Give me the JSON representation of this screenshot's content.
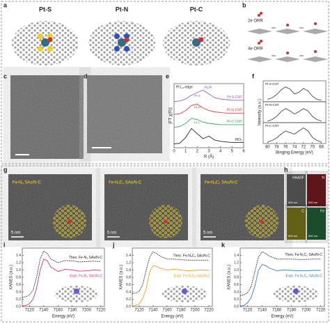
{
  "panel_labels": [
    "a",
    "b",
    "c",
    "d",
    "e",
    "f",
    "g",
    "h",
    "i",
    "j",
    "k"
  ],
  "a": {
    "titles": [
      "Pt-S",
      "Pt-N",
      "Pt-C"
    ]
  },
  "b": {
    "labels": [
      "2e ORR",
      "4e ORR"
    ]
  },
  "e": {
    "title": "Pt L₃-edge",
    "peak_label": "Pt-Pt",
    "xlabel": "R (Å)",
    "ylabel": "|FT χ(R)|",
    "xlim": [
      0,
      6
    ],
    "xticks": [
      0,
      1,
      2,
      3,
      4,
      5,
      6
    ],
    "ylim": [
      0,
      5
    ],
    "x": [
      0,
      0.5,
      1,
      1.5,
      2,
      2.5,
      3,
      3.5,
      4,
      4.5,
      5,
      5.5,
      6
    ],
    "series": [
      {
        "name": "Pt-S-CNT",
        "color": "#9b59b6",
        "values": [
          3.6,
          3.65,
          3.8,
          4.1,
          4.3,
          4.5,
          4.2,
          3.9,
          3.8,
          3.75,
          3.7,
          3.7,
          3.7
        ]
      },
      {
        "name": "Pt-N-CNT",
        "color": "#e04040",
        "values": [
          2.6,
          2.65,
          2.9,
          3.3,
          3.4,
          3.1,
          2.9,
          2.8,
          2.75,
          2.7,
          2.7,
          2.7,
          2.7
        ]
      },
      {
        "name": "Pt-C-CNT",
        "color": "#3aa655",
        "values": [
          1.6,
          1.65,
          1.9,
          2.3,
          2.2,
          2.0,
          1.9,
          1.85,
          1.8,
          1.8,
          1.8,
          1.8,
          1.8
        ]
      },
      {
        "name": "PtO₂",
        "color": "#222222",
        "values": [
          0.3,
          0.35,
          0.8,
          1.5,
          1.1,
          0.7,
          0.9,
          0.6,
          0.5,
          0.45,
          0.4,
          0.4,
          0.4
        ]
      }
    ],
    "peak_labels": [
      "Pt-S",
      "Pt-N",
      "Pt-C"
    ]
  },
  "f": {
    "xlabel": "Binging Energy (eV)",
    "ylabel": "Intensity (a.u.)",
    "xlim": [
      81,
      67
    ],
    "xticks": [
      80,
      78,
      76,
      74,
      72,
      70,
      68
    ],
    "ylim": [
      0,
      1.2
    ],
    "color": "#444444",
    "x": [
      80,
      79,
      78,
      77,
      76,
      75,
      74,
      73,
      72,
      71,
      70,
      69,
      68
    ],
    "panels": [
      {
        "name": "Pt-S-CNT",
        "values": [
          0.15,
          0.25,
          0.45,
          0.75,
          0.95,
          0.8,
          0.5,
          0.6,
          0.85,
          0.7,
          0.35,
          0.15,
          0.1
        ]
      },
      {
        "name": "Pt-N-CNT",
        "values": [
          0.1,
          0.2,
          0.4,
          0.7,
          0.9,
          0.75,
          0.55,
          0.7,
          0.9,
          0.75,
          0.4,
          0.2,
          0.1
        ]
      },
      {
        "name": "Pt-C-CNT",
        "values": [
          0.1,
          0.2,
          0.35,
          0.6,
          0.8,
          0.7,
          0.6,
          0.8,
          1.0,
          0.8,
          0.4,
          0.2,
          0.1
        ]
      }
    ]
  },
  "g": {
    "labels": [
      "Fe-N₄ SAs/N-C",
      "Fe-N₃C₁ SAs/N-C",
      "Fe-N₂C₂ SAs/N-C"
    ],
    "scale": "5 nm"
  },
  "h": {
    "maps": [
      {
        "label": "HAADF",
        "color": "#9a9a9a"
      },
      {
        "label": "N",
        "color": "#c0202a"
      },
      {
        "label": "C",
        "color": "#c8c020"
      },
      {
        "label": "Fe",
        "color": "#2a9a50"
      }
    ],
    "scale": "500 nm"
  },
  "xanes": [
    {
      "xlabel": "Energy (eV)",
      "ylabel": "XANES (a.u.)",
      "xlim": [
        7110,
        7225
      ],
      "xticks": [
        7120,
        7140,
        7160,
        7180,
        7200,
        7220
      ],
      "ylim": [
        0,
        1.6
      ],
      "yticks": [
        {
          "value": 0,
          "label": "0.0"
        },
        0.2,
        0.4,
        0.6,
        0.8,
        {
          "value": 1,
          "label": "1.0"
        },
        1.2,
        1.4
      ],
      "x": [
        7110,
        7115,
        7120,
        7125,
        7130,
        7135,
        7140,
        7145,
        7150,
        7160,
        7170,
        7180,
        7190,
        7200,
        7210,
        7220
      ],
      "series": [
        {
          "name": "Theo. Fe-N₄ SAs/N-C",
          "color": "#111111",
          "style": "dotted",
          "values": [
            0.25,
            0.27,
            0.32,
            0.45,
            0.8,
            1.3,
            1.52,
            1.45,
            1.3,
            1.2,
            1.26,
            1.25,
            1.22,
            1.23,
            1.24,
            1.23
          ]
        },
        {
          "name": "Expt. Fe-N₄ SAs/N-C",
          "color": "#d63a6a",
          "style": "solid",
          "values": [
            0.02,
            0.03,
            0.08,
            0.2,
            0.5,
            1.0,
            1.3,
            1.25,
            1.08,
            0.96,
            1.02,
            1.0,
            0.97,
            0.98,
            1.0,
            0.99
          ]
        }
      ]
    },
    {
      "xlabel": "Energy (eV)",
      "ylabel": "XANES (a.u.)",
      "xlim": [
        7110,
        7225
      ],
      "xticks": [
        7120,
        7140,
        7160,
        7180,
        7200,
        7220
      ],
      "ylim": [
        0,
        1.6
      ],
      "yticks": [
        {
          "value": 0,
          "label": "0.0"
        },
        0.2,
        0.4,
        0.6,
        0.8,
        {
          "value": 1,
          "label": "1.0"
        },
        1.2,
        1.4
      ],
      "x": [
        7110,
        7115,
        7120,
        7125,
        7130,
        7135,
        7140,
        7145,
        7150,
        7160,
        7170,
        7180,
        7190,
        7200,
        7210,
        7220
      ],
      "series": [
        {
          "name": "Theo. Fe-N₃C₁ SAs/N-C",
          "color": "#111111",
          "style": "dotted",
          "values": [
            0.35,
            0.37,
            0.42,
            0.6,
            1.0,
            1.35,
            1.5,
            1.45,
            1.38,
            1.3,
            1.3,
            1.28,
            1.27,
            1.27,
            1.27,
            1.27
          ]
        },
        {
          "name": "Expt. Fe-N₃C₁ SAs/N-C",
          "color": "#f0a020",
          "style": "solid",
          "values": [
            0.02,
            0.03,
            0.08,
            0.22,
            0.5,
            0.95,
            1.12,
            1.1,
            1.05,
            1.0,
            1.02,
            1.0,
            0.98,
            0.99,
            1.0,
            0.99
          ]
        }
      ]
    },
    {
      "xlabel": "Energy (eV)",
      "ylabel": "XANES (a.u.)",
      "xlim": [
        7110,
        7225
      ],
      "xticks": [
        7120,
        7140,
        7160,
        7180,
        7200,
        7220
      ],
      "ylim": [
        0,
        1.6
      ],
      "yticks": [
        {
          "value": 0,
          "label": "0.0"
        },
        0.2,
        0.4,
        0.6,
        0.8,
        {
          "value": 1,
          "label": "1.0"
        },
        1.2,
        1.4
      ],
      "x": [
        7110,
        7115,
        7120,
        7125,
        7130,
        7135,
        7140,
        7145,
        7150,
        7160,
        7170,
        7180,
        7190,
        7200,
        7210,
        7220
      ],
      "series": [
        {
          "name": "Theo. Fe-N₂C₂ SAs/N-C",
          "color": "#111111",
          "style": "dotted",
          "values": [
            0.3,
            0.32,
            0.38,
            0.55,
            0.95,
            1.35,
            1.5,
            1.45,
            1.38,
            1.3,
            1.3,
            1.3,
            1.29,
            1.29,
            1.3,
            1.3
          ]
        },
        {
          "name": "Expt. Fe-N₂C₂ SAs/N-C",
          "color": "#3a7ac8",
          "style": "solid",
          "values": [
            0.02,
            0.03,
            0.1,
            0.25,
            0.55,
            1.0,
            1.15,
            1.12,
            1.05,
            0.98,
            1.0,
            0.99,
            0.98,
            0.98,
            0.99,
            0.99
          ]
        }
      ]
    }
  ]
}
